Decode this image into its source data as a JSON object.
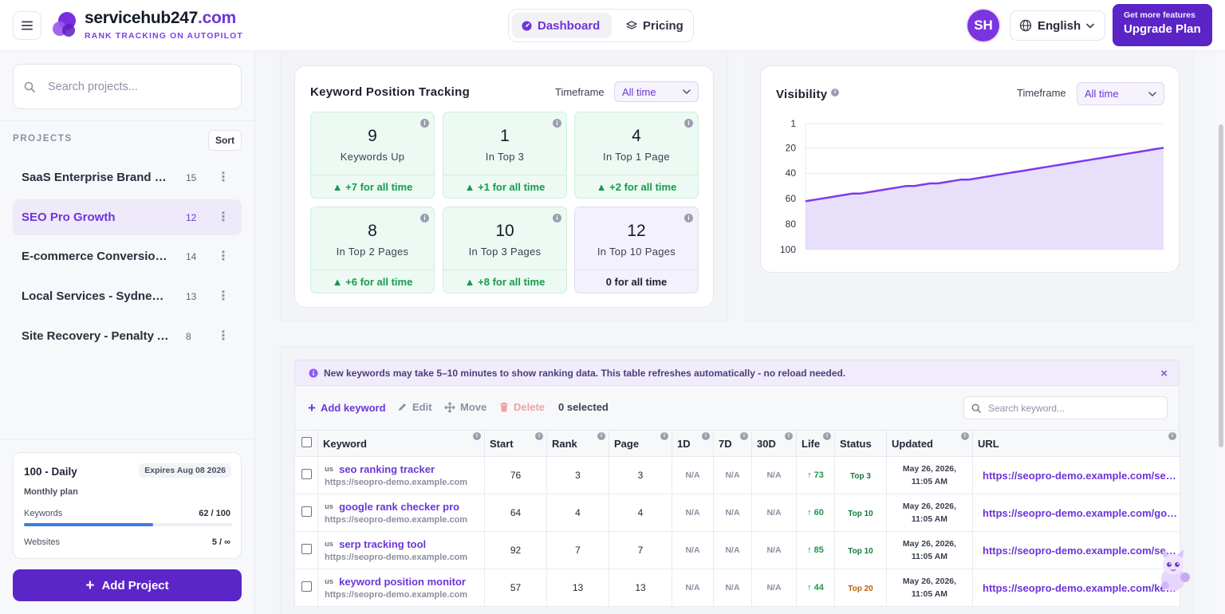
{
  "header": {
    "brand_name": "servicehub247",
    "brand_tld": ".com",
    "tagline": "RANK TRACKING ON AUTOPILOT",
    "nav": [
      {
        "label": "Dashboard",
        "active": true
      },
      {
        "label": "Pricing",
        "active": false
      }
    ],
    "avatar_initials": "SH",
    "language": "English",
    "upgrade_small": "Get more features",
    "upgrade_big": "Upgrade Plan"
  },
  "sidebar": {
    "search_placeholder": "Search projects...",
    "projects_heading": "PROJECTS",
    "sort_label": "Sort",
    "projects": [
      {
        "name": "SaaS Enterprise Brand Visibility",
        "count": "15",
        "active": false
      },
      {
        "name": "SEO Pro Growth",
        "count": "12",
        "active": true
      },
      {
        "name": "E-commerce Conversion Boost",
        "count": "14",
        "active": false
      },
      {
        "name": "Local Services - Sydney Metro",
        "count": "13",
        "active": false
      },
      {
        "name": "Site Recovery - Penalty Audit",
        "count": "8",
        "active": false
      }
    ],
    "plan": {
      "name": "100 - Daily",
      "expires": "Expires Aug 08 2026",
      "type": "Monthly plan",
      "keywords_label": "Keywords",
      "keywords_value": "62 / 100",
      "keywords_used_fraction": 0.62,
      "websites_label": "Websites",
      "websites_value": "5 / ∞"
    },
    "add_project_label": "Add Project"
  },
  "tracking": {
    "title": "Keyword Position Tracking",
    "timeframe_label": "Timeframe",
    "timeframe_value": "All time",
    "stats": [
      {
        "value": "9",
        "label": "Keywords Up",
        "delta": "▲ +7 for all time"
      },
      {
        "value": "1",
        "label": "In Top 3",
        "delta": "▲ +1 for all time"
      },
      {
        "value": "4",
        "label": "In Top 1 Page",
        "delta": "▲ +2 for all time"
      },
      {
        "value": "8",
        "label": "In Top 2 Pages",
        "delta": "▲ +6 for all time"
      },
      {
        "value": "10",
        "label": "In Top 3 Pages",
        "delta": "▲ +8 for all time"
      },
      {
        "value": "12",
        "label": "In Top 10 Pages",
        "delta": "0 for all time"
      }
    ]
  },
  "visibility": {
    "title": "Visibility",
    "timeframe_label": "Timeframe",
    "timeframe_value": "All time"
  },
  "chart_data": {
    "type": "area",
    "title": "Visibility",
    "y_ticks": [
      "1",
      "20",
      "40",
      "60",
      "80",
      "100"
    ],
    "y_inverted": true,
    "ylim": [
      1,
      100
    ],
    "grid": true,
    "color": "#7c3aed",
    "values": [
      62,
      61,
      60,
      59,
      58,
      57,
      56,
      56,
      55,
      54,
      53,
      52,
      51,
      50,
      50,
      49,
      48,
      48,
      47,
      46,
      45,
      45,
      44,
      43,
      42,
      41,
      40,
      39,
      38,
      37,
      36,
      35,
      34,
      33,
      32,
      31,
      30,
      29,
      28,
      27,
      26,
      25,
      24,
      23,
      22,
      21,
      20
    ]
  },
  "notice": {
    "text": "New keywords may take 5–10 minutes to show ranking data. This table refreshes automatically - no reload needed."
  },
  "toolbar": {
    "add_label": "Add keyword",
    "edit_label": "Edit",
    "move_label": "Move",
    "delete_label": "Delete",
    "selected_label": "0 selected",
    "search_placeholder": "Search keyword..."
  },
  "table": {
    "columns": [
      "Keyword",
      "Start",
      "Rank",
      "Page",
      "1D",
      "7D",
      "30D",
      "Life",
      "Status",
      "Updated",
      "URL"
    ],
    "rows": [
      {
        "cc": "us",
        "keyword": "seo ranking tracker",
        "site": "https://seopro-demo.example.com",
        "start": "76",
        "rank": "3",
        "page": "3",
        "d1": "N/A",
        "d7": "N/A",
        "d30": "N/A",
        "life": "↑ 73",
        "status": "Top 3",
        "status_color": "#157a3c",
        "updated_date": "May 26, 2026,",
        "updated_time": "11:05 AM",
        "url": "https://seopro-demo.example.com/seo-ranking-tracker"
      },
      {
        "cc": "us",
        "keyword": "google rank checker pro",
        "site": "https://seopro-demo.example.com",
        "start": "64",
        "rank": "4",
        "page": "4",
        "d1": "N/A",
        "d7": "N/A",
        "d30": "N/A",
        "life": "↑ 60",
        "status": "Top 10",
        "status_color": "#157a3c",
        "updated_date": "May 26, 2026,",
        "updated_time": "11:05 AM",
        "url": "https://seopro-demo.example.com/google-rank-checker"
      },
      {
        "cc": "us",
        "keyword": "serp tracking tool",
        "site": "https://seopro-demo.example.com",
        "start": "92",
        "rank": "7",
        "page": "7",
        "d1": "N/A",
        "d7": "N/A",
        "d30": "N/A",
        "life": "↑ 85",
        "status": "Top 10",
        "status_color": "#157a3c",
        "updated_date": "May 26, 2026,",
        "updated_time": "11:05 AM",
        "url": "https://seopro-demo.example.com/serp-tracking-tool"
      },
      {
        "cc": "us",
        "keyword": "keyword position monitor",
        "site": "https://seopro-demo.example.com",
        "start": "57",
        "rank": "13",
        "page": "13",
        "d1": "N/A",
        "d7": "N/A",
        "d30": "N/A",
        "life": "↑ 44",
        "status": "Top 20",
        "status_color": "#b5630d",
        "updated_date": "May 26, 2026,",
        "updated_time": "11:05 AM",
        "url": "https://seopro-demo.example.com/keyword-position"
      }
    ]
  }
}
